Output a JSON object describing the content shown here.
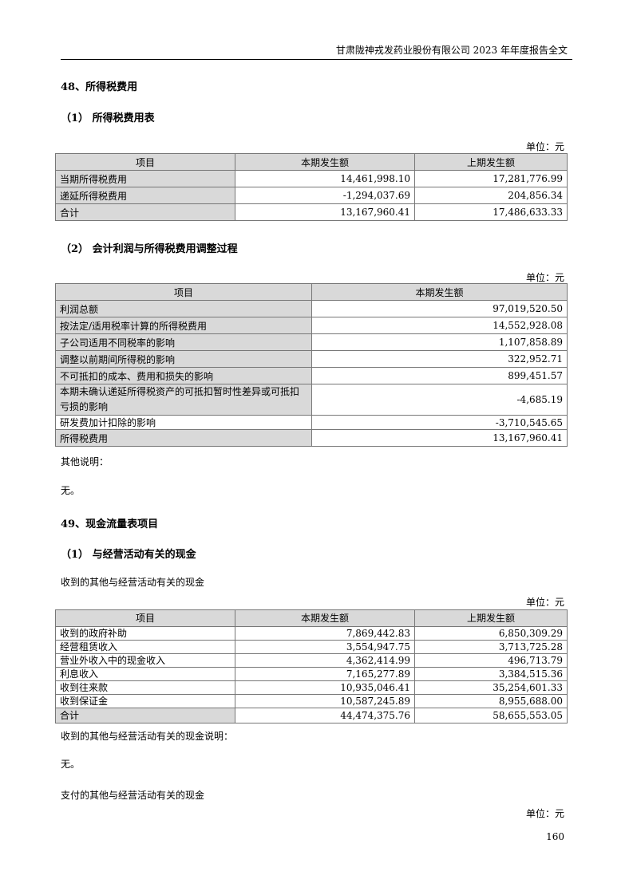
{
  "header": {
    "title": "甘肃陇神戎发药业股份有限公司 2023 年年度报告全文"
  },
  "section48": {
    "title": "48、所得税费用",
    "sub1": {
      "title": "（1） 所得税费用表",
      "unit": "单位：元",
      "columns": [
        "项目",
        "本期发生额",
        "上期发生额"
      ],
      "rows": [
        [
          "当期所得税费用",
          "14,461,998.10",
          "17,281,776.99"
        ],
        [
          "递延所得税费用",
          "-1,294,037.69",
          "204,856.34"
        ],
        [
          "合计",
          "13,167,960.41",
          "17,486,633.33"
        ]
      ]
    },
    "sub2": {
      "title": "（2） 会计利润与所得税费用调整过程",
      "unit": "单位：元",
      "columns": [
        "项目",
        "本期发生额"
      ],
      "rows": [
        [
          "利润总额",
          "97,019,520.50"
        ],
        [
          "按法定/适用税率计算的所得税费用",
          "14,552,928.08"
        ],
        [
          "子公司适用不同税率的影响",
          "1,107,858.89"
        ],
        [
          "调整以前期间所得税的影响",
          "322,952.71"
        ],
        [
          "不可抵扣的成本、费用和损失的影响",
          "899,451.57"
        ],
        [
          "本期未确认递延所得税资产的可抵扣暂时性差异或可抵扣亏损的影响",
          "-4,685.19"
        ],
        [
          "研发费加计扣除的影响",
          "-3,710,545.65"
        ],
        [
          "所得税费用",
          "13,167,960.41"
        ]
      ],
      "note_label": "其他说明：",
      "note": "无。"
    }
  },
  "section49": {
    "title": "49、现金流量表项目",
    "sub1": {
      "title": "（1） 与经营活动有关的现金",
      "caption": "收到的其他与经营活动有关的现金",
      "unit": "单位：元",
      "columns": [
        "项目",
        "本期发生额",
        "上期发生额"
      ],
      "rows": [
        [
          "收到的政府补助",
          "7,869,442.83",
          "6,850,309.29"
        ],
        [
          "经营租赁收入",
          "3,554,947.75",
          "3,713,725.28"
        ],
        [
          "营业外收入中的现金收入",
          "4,362,414.99",
          "496,713.79"
        ],
        [
          "利息收入",
          "7,165,277.89",
          "3,384,515.36"
        ],
        [
          "收到往来款",
          "10,935,046.41",
          "35,254,601.33"
        ],
        [
          "收到保证金",
          "10,587,245.89",
          "8,955,688.00"
        ],
        [
          "合计",
          "44,474,375.76",
          "58,655,553.05"
        ]
      ],
      "note_label": "收到的其他与经营活动有关的现金说明：",
      "note": "无。",
      "caption2": "支付的其他与经营活动有关的现金",
      "unit2": "单位：元"
    }
  },
  "page_number": "160"
}
